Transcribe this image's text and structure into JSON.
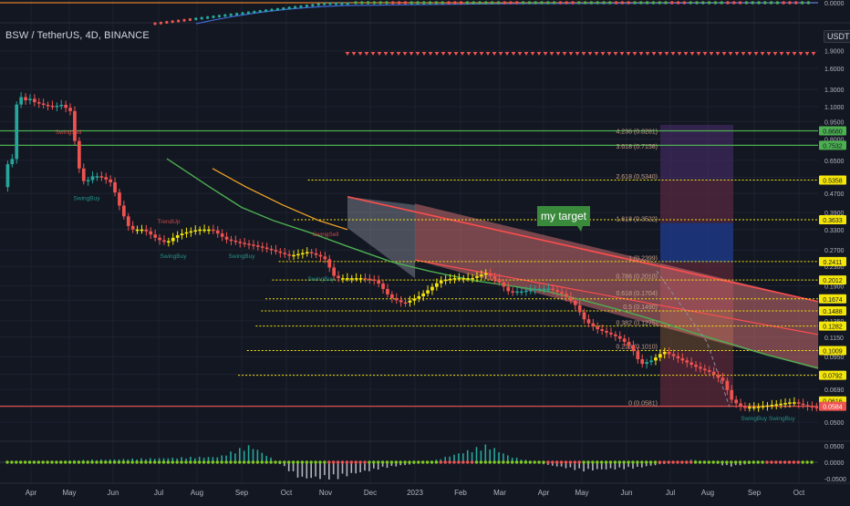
{
  "header": {
    "symbol_title": "BSW / TetherUS, 4D, BINANCE",
    "quote_currency": "USDT"
  },
  "colors": {
    "background": "#131722",
    "bull": "#26a69a",
    "bear": "#ef5350",
    "yellow_bar": "#f5e60a",
    "green_ma": "#4caf50",
    "orange_ma": "#f5a623",
    "target_bubble": "#3a8a3c"
  },
  "chart_data": {
    "type": "candlestick",
    "y_scale": "log",
    "x_axis": {
      "labels": [
        "Apr",
        "May",
        "Jun",
        "Jul",
        "Aug",
        "Sep",
        "Oct",
        "Nov",
        "Dec",
        "2023",
        "Feb",
        "Mar",
        "Apr",
        "May",
        "Jun",
        "Jul",
        "Aug",
        "Sep",
        "Oct"
      ]
    },
    "price_axis_ticks": [
      "1.9000",
      "1.6000",
      "1.3000",
      "1.1000",
      "0.9500",
      "0.8000",
      "0.6500",
      "0.5500",
      "0.4700",
      "0.3900",
      "0.3300",
      "0.2700",
      "0.2300",
      "0.1900",
      "0.1650",
      "0.1350",
      "0.1150",
      "0.0950",
      "0.0800",
      "0.0690",
      "0.0590",
      "0.0500"
    ],
    "top_pane_ticks": [
      "0.0000"
    ],
    "bottom_pane_ticks": [
      "0.0500",
      "0.0000",
      "-0.0500"
    ],
    "price_level_badges": [
      {
        "value": "0.8680",
        "color": "#4caf50"
      },
      {
        "value": "0.7532",
        "color": "#4caf50"
      },
      {
        "value": "0.5358",
        "color": "#f5e60a"
      },
      {
        "value": "0.3633",
        "color": "#f5e60a"
      },
      {
        "value": "0.2411",
        "color": "#f5e60a"
      },
      {
        "value": "0.2012",
        "color": "#f5e60a"
      },
      {
        "value": "0.1674",
        "color": "#f5e60a"
      },
      {
        "value": "0.1488",
        "color": "#f5e60a"
      },
      {
        "value": "0.1282",
        "color": "#f5e60a"
      },
      {
        "value": "0.1009",
        "color": "#f5e60a"
      },
      {
        "value": "0.0792",
        "color": "#f5e60a"
      },
      {
        "value": "0.0616",
        "color": "#f5e60a"
      },
      {
        "value": "0.0584",
        "color": "#ef5350"
      }
    ],
    "fib_levels": [
      {
        "label": "4.236 (0.8281)",
        "price": 0.8281
      },
      {
        "label": "3.618 (0.7158)",
        "price": 0.7158
      },
      {
        "label": "2.618 (0.5340)",
        "price": 0.534
      },
      {
        "label": "1.618 (0.3522)",
        "price": 0.3522
      },
      {
        "label": "1 (0.2399)",
        "price": 0.2399
      },
      {
        "label": "0.786 (0.2010)",
        "price": 0.201
      },
      {
        "label": "0.618 (0.1704)",
        "price": 0.1704
      },
      {
        "label": "0.5 (0.1490)",
        "price": 0.149
      },
      {
        "label": "0.382 (0.1275)",
        "price": 0.1275
      },
      {
        "label": "0.236 (0.1010)",
        "price": 0.101
      },
      {
        "label": "0 (0.0581)",
        "price": 0.0581
      }
    ],
    "annotations": {
      "target_label": "my target",
      "signal_labels": [
        "SwingSell",
        "SwingBuy",
        "TrendUp",
        "SwingBuy",
        "SwingBuy",
        "SwingSell",
        "SwingBuy",
        "SwingBuy SwingBuy"
      ]
    },
    "horizontal_lines": [
      {
        "price": 0.868,
        "color": "#4caf50",
        "style": "solid"
      },
      {
        "price": 0.7532,
        "color": "#4caf50",
        "style": "solid"
      },
      {
        "price": 0.5358,
        "color": "#f5e60a",
        "style": "dotted"
      },
      {
        "price": 0.3633,
        "color": "#f5e60a",
        "style": "dotted"
      },
      {
        "price": 0.2411,
        "color": "#f5e60a",
        "style": "dotted"
      },
      {
        "price": 0.2012,
        "color": "#f5e60a",
        "style": "dotted"
      },
      {
        "price": 0.1674,
        "color": "#f5e60a",
        "style": "dotted"
      },
      {
        "price": 0.1488,
        "color": "#f5e60a",
        "style": "dotted"
      },
      {
        "price": 0.1282,
        "color": "#f5e60a",
        "style": "dotted"
      },
      {
        "price": 0.1009,
        "color": "#f5e60a",
        "style": "dotted"
      },
      {
        "price": 0.0792,
        "color": "#f5e60a",
        "style": "dotted"
      },
      {
        "price": 0.0584,
        "color": "#ef5350",
        "style": "solid"
      }
    ]
  }
}
